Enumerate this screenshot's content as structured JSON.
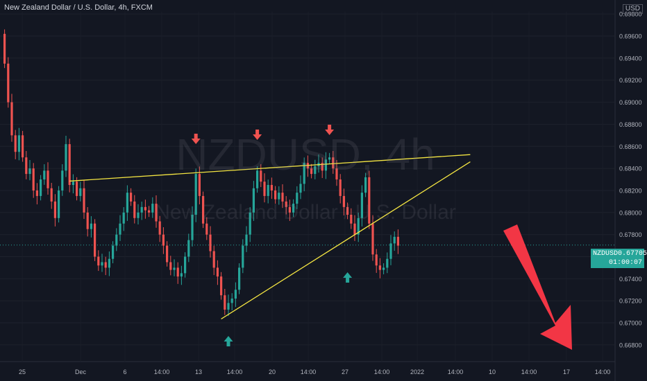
{
  "header": {
    "title": "New Zealand Dollar / U.S. Dollar, 4h, FXCM",
    "currency": "USD"
  },
  "watermark": {
    "symbol": "NZDUSD, 4h",
    "name": "New Zealand Dollar / U.S. Dollar"
  },
  "price_tag": {
    "symbol": "NZDUSD",
    "price": "0.67705",
    "countdown": "01:00:07"
  },
  "colors": {
    "background": "#131722",
    "up": "#26a69a",
    "down": "#ef5350",
    "trendline": "#f5e642",
    "arrow": "#f23645",
    "axis_text": "#b2b5be"
  },
  "chart_data": {
    "type": "candlestick",
    "title": "New Zealand Dollar / U.S. Dollar, 4h, FXCM",
    "y_axis": {
      "position": "right",
      "range": [
        0.6668,
        0.6982
      ],
      "ticks": [
        0.698,
        0.696,
        0.694,
        0.692,
        0.69,
        0.688,
        0.686,
        0.684,
        0.682,
        0.68,
        0.678,
        0.676,
        0.674,
        0.672,
        0.67,
        0.668
      ],
      "tick_labels": [
        "0.69800",
        "0.69600",
        "0.69400",
        "0.69200",
        "0.69000",
        "0.68800",
        "0.68600",
        "0.68400",
        "0.68200",
        "0.68000",
        "0.67800",
        "0.67600",
        "0.67400",
        "0.67200",
        "0.67000",
        "0.66800"
      ]
    },
    "x_axis": {
      "tick_labels": [
        "25",
        "Dec",
        "6",
        "14:00",
        "13",
        "14:00",
        "20",
        "14:00",
        "27",
        "14:00",
        "2022",
        "14:00",
        "10",
        "14:00",
        "17",
        "14:00"
      ]
    },
    "close_series": [
      0.6935,
      0.69,
      0.687,
      0.6855,
      0.687,
      0.685,
      0.6835,
      0.684,
      0.682,
      0.6815,
      0.683,
      0.6838,
      0.6822,
      0.681,
      0.6795,
      0.682,
      0.6838,
      0.6862,
      0.6825,
      0.6828,
      0.6815,
      0.6822,
      0.68,
      0.6785,
      0.679,
      0.676,
      0.6752,
      0.6755,
      0.675,
      0.6758,
      0.677,
      0.678,
      0.679,
      0.68,
      0.6818,
      0.681,
      0.6795,
      0.68,
      0.6805,
      0.6802,
      0.68,
      0.6808,
      0.6792,
      0.678,
      0.677,
      0.6755,
      0.6748,
      0.675,
      0.6742,
      0.6745,
      0.676,
      0.6775,
      0.6798,
      0.6835,
      0.6815,
      0.679,
      0.678,
      0.6765,
      0.675,
      0.6742,
      0.6725,
      0.6712,
      0.6718,
      0.6722,
      0.673,
      0.675,
      0.677,
      0.678,
      0.68,
      0.6822,
      0.6838,
      0.6828,
      0.6815,
      0.6825,
      0.682,
      0.6812,
      0.6818,
      0.681,
      0.6805,
      0.68,
      0.6808,
      0.6818,
      0.6826,
      0.6845,
      0.684,
      0.6835,
      0.6842,
      0.6845,
      0.6838,
      0.6848,
      0.685,
      0.684,
      0.683,
      0.6815,
      0.6805,
      0.6798,
      0.679,
      0.678,
      0.6795,
      0.6818,
      0.6832,
      0.679,
      0.6762,
      0.6752,
      0.6748,
      0.675,
      0.6758,
      0.6772,
      0.6778,
      0.677
    ],
    "annotations": {
      "resistance_line": {
        "from": {
          "index": 18,
          "price": 0.68285
        },
        "to": {
          "index": 129,
          "price": 0.68525
        }
      },
      "support_line": {
        "from": {
          "index": 60,
          "price": 0.67035
        },
        "to": {
          "index": 129,
          "price": 0.6846
        }
      },
      "resistance_touch_markers": [
        53,
        70,
        90
      ],
      "support_touch_markers": [
        62,
        95
      ]
    }
  }
}
